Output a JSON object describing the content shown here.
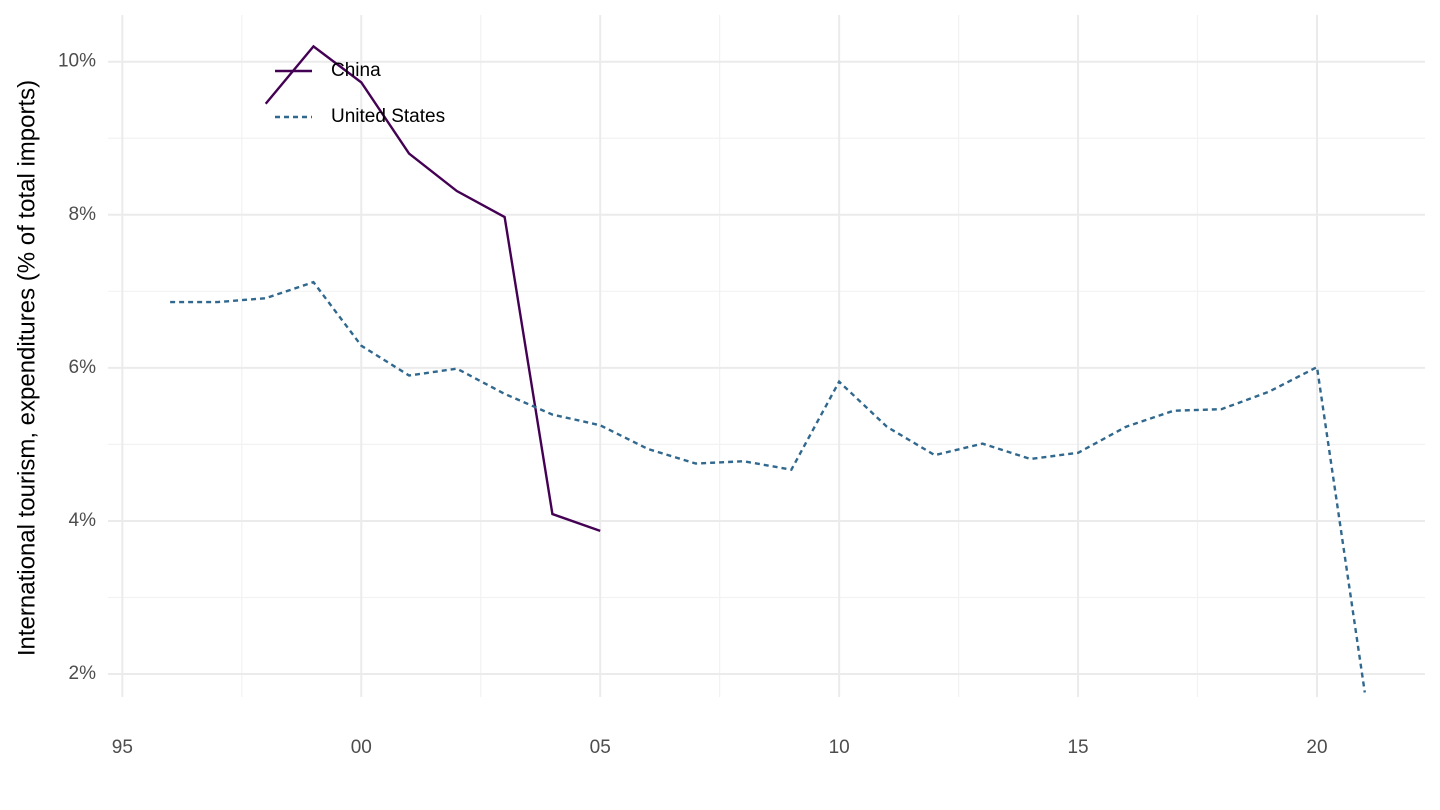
{
  "chart_data": {
    "type": "line",
    "y_label": "International tourism, expenditures (% of total imports)",
    "x": [
      1996,
      1997,
      1998,
      1999,
      2000,
      2001,
      2002,
      2003,
      2004,
      2005,
      2006,
      2007,
      2008,
      2009,
      2010,
      2011,
      2012,
      2013,
      2014,
      2015,
      2016,
      2017,
      2018,
      2019,
      2020,
      2021
    ],
    "series": [
      {
        "name": "China",
        "color": "#440154",
        "linestyle": "solid",
        "values": [
          null,
          null,
          9.45,
          10.2,
          9.73,
          8.8,
          8.31,
          7.97,
          4.09,
          3.87,
          null,
          null,
          null,
          null,
          null,
          null,
          null,
          null,
          null,
          null,
          null,
          null,
          null,
          null,
          null,
          null
        ]
      },
      {
        "name": "United States",
        "color": "#31688e",
        "linestyle": "dotted",
        "values": [
          6.86,
          6.86,
          6.91,
          7.12,
          6.29,
          5.9,
          5.99,
          5.66,
          5.39,
          5.25,
          4.94,
          4.75,
          4.78,
          4.67,
          5.82,
          5.23,
          4.86,
          5.01,
          4.81,
          4.89,
          5.23,
          5.44,
          5.46,
          5.69,
          6.01,
          1.76
        ]
      }
    ],
    "xlim": [
      1994.7,
      2022.26
    ],
    "xticks": [
      {
        "value": 1995,
        "label": "95"
      },
      {
        "value": 2000,
        "label": "00"
      },
      {
        "value": 2005,
        "label": "05"
      },
      {
        "value": 2010,
        "label": "10"
      },
      {
        "value": 2015,
        "label": "15"
      },
      {
        "value": 2020,
        "label": "20"
      }
    ],
    "xminor": [
      1997.5,
      2002.5,
      2007.5,
      2012.5,
      2017.5
    ],
    "ylim": [
      1.7,
      10.61
    ],
    "yticks": [
      {
        "value": 2,
        "label": "2%"
      },
      {
        "value": 4,
        "label": "4%"
      },
      {
        "value": 6,
        "label": "6%"
      },
      {
        "value": 8,
        "label": "8%"
      },
      {
        "value": 10,
        "label": "10%"
      }
    ],
    "yminor": [
      3,
      5,
      7,
      9
    ],
    "grid": true,
    "legend": "top-left"
  }
}
